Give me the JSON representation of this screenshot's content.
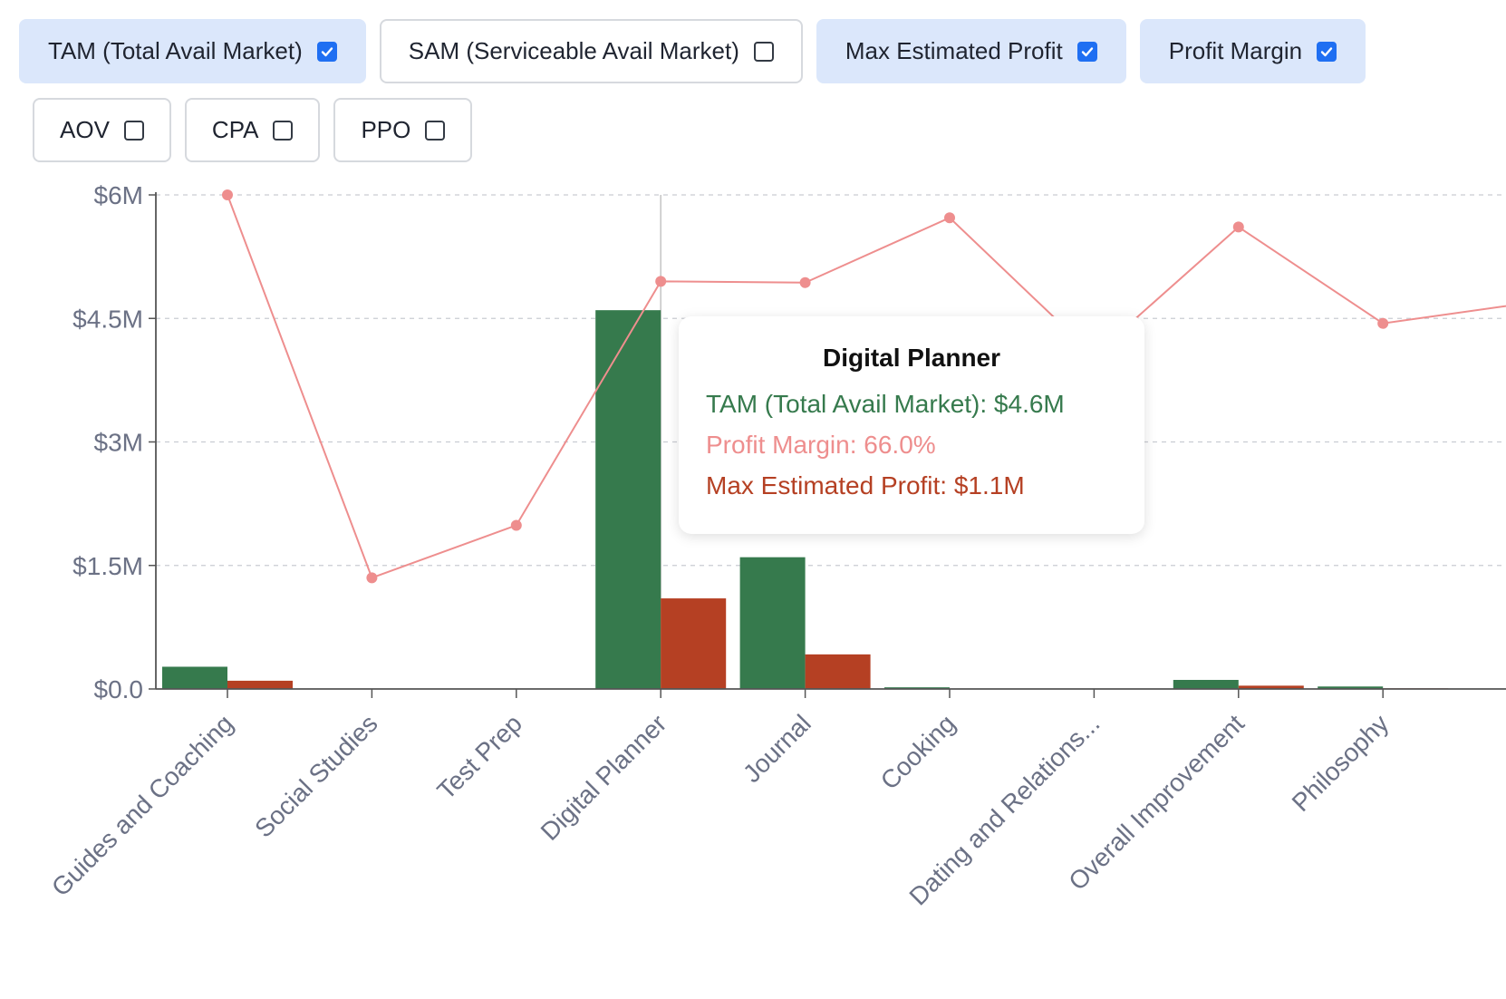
{
  "toggles": [
    {
      "label": "TAM (Total Avail Market)",
      "checked": true
    },
    {
      "label": "SAM (Serviceable Avail Market)",
      "checked": false
    },
    {
      "label": "Max Estimated Profit",
      "checked": true
    },
    {
      "label": "Profit Margin",
      "checked": true
    },
    {
      "label": "AOV",
      "checked": false
    },
    {
      "label": "CPA",
      "checked": false
    },
    {
      "label": "PPO",
      "checked": false
    }
  ],
  "colors": {
    "tam": "#367a4d",
    "profit": "#b54023",
    "margin": "#ee8e8e",
    "axis": "#6b7185"
  },
  "chart_data": {
    "type": "bar",
    "categories": [
      "Guides and Coaching",
      "Social Studies",
      "Test Prep",
      "Digital Planner",
      "Journal",
      "Cooking",
      "Dating and Relations...",
      "Overall Improvement",
      "Philosophy"
    ],
    "series": [
      {
        "name": "TAM (Total Avail Market)",
        "type": "bar",
        "values": [
          270000,
          0,
          0,
          4600000,
          1600000,
          20000,
          0,
          110000,
          30000
        ]
      },
      {
        "name": "Max Estimated Profit",
        "type": "bar",
        "values": [
          100000,
          0,
          0,
          1100000,
          420000,
          5000,
          0,
          40000,
          8000
        ]
      },
      {
        "name": "Profit Margin",
        "type": "line",
        "values": [
          80.0,
          18.0,
          26.5,
          66.0,
          65.8,
          76.3,
          54.0,
          74.8,
          59.2
        ]
      }
    ],
    "y_ticks": [
      "$0.0",
      "$1.5M",
      "$3M",
      "$4.5M",
      "$6M"
    ],
    "ylim": [
      0,
      6000000
    ],
    "grid": true
  },
  "tooltip": {
    "title": "Digital Planner",
    "tam": "TAM (Total Avail Market): $4.6M",
    "margin": "Profit Margin: 66.0%",
    "profit": "Max Estimated Profit: $1.1M"
  }
}
